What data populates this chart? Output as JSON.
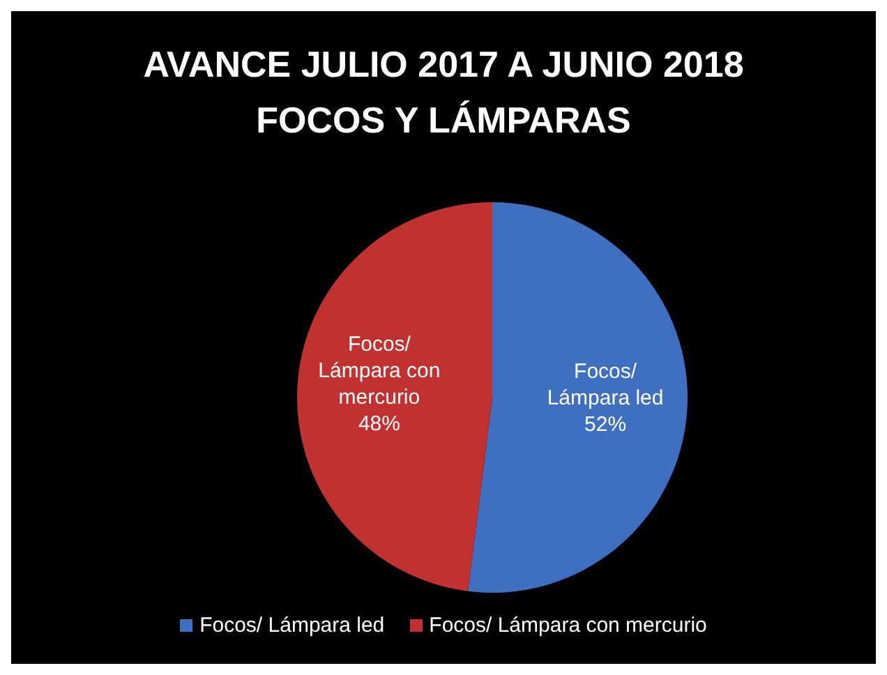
{
  "chart_data": {
    "type": "pie",
    "title": "AVANCE JULIO 2017 A JUNIO 2018\nFOCOS Y LÁMPARAS",
    "categories": [
      "Focos/ Lámpara led",
      "Focos/ Lámpara con mercurio"
    ],
    "values": [
      52,
      48
    ],
    "colors": [
      "#3f6fc0",
      "#c0312f"
    ],
    "value_labels": [
      "52%",
      "48%"
    ],
    "legend": "bottom"
  }
}
